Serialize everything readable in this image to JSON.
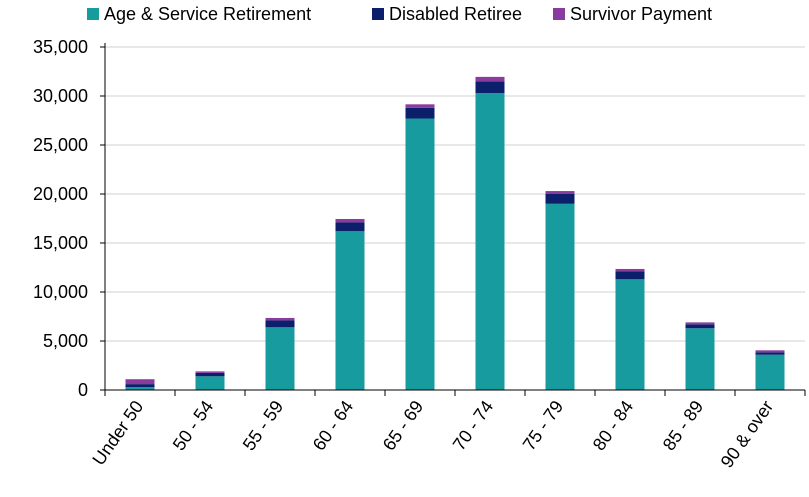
{
  "chart_data": {
    "type": "bar",
    "stacked": true,
    "title": "",
    "xlabel": "",
    "ylabel": "",
    "categories": [
      "Under 50",
      "50 - 54",
      "55 - 59",
      "60 - 64",
      "65 - 69",
      "70 - 74",
      "75 - 79",
      "80 - 84",
      "85 - 89",
      "90 & over"
    ],
    "series": [
      {
        "name": "Age & Service Retirement",
        "color": "#179B9E",
        "values": [
          300,
          1400,
          6400,
          16200,
          27700,
          30300,
          19000,
          11300,
          6300,
          3600
        ]
      },
      {
        "name": "Disabled Retiree",
        "color": "#0B1F6B",
        "values": [
          300,
          350,
          700,
          900,
          1100,
          1200,
          1000,
          800,
          400,
          250
        ]
      },
      {
        "name": "Survivor Payment",
        "color": "#8B3A9E",
        "values": [
          500,
          150,
          250,
          350,
          350,
          450,
          300,
          250,
          200,
          200
        ]
      }
    ],
    "ylim": [
      0,
      35000
    ],
    "yticks": [
      "0",
      "5,000",
      "10,000",
      "15,000",
      "20,000",
      "25,000",
      "30,000",
      "35,000"
    ],
    "ytick_values": [
      0,
      5000,
      10000,
      15000,
      20000,
      25000,
      30000,
      35000
    ],
    "grid": true,
    "legend": "top"
  }
}
